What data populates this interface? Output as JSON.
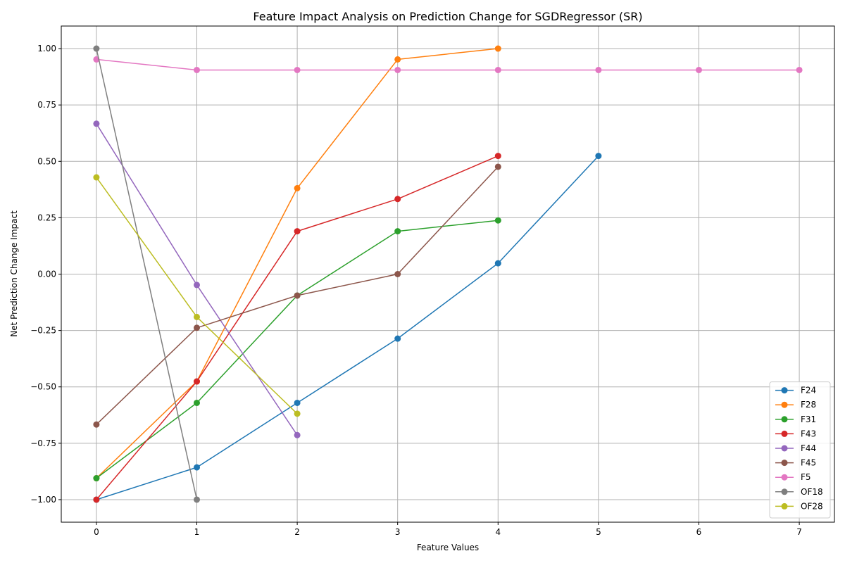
{
  "chart_data": {
    "type": "line",
    "title": "Feature Impact Analysis on Prediction Change for SGDRegressor (SR)",
    "xlabel": "Feature Values",
    "ylabel": "Net Prediction Change Impact",
    "xlim": [
      -0.35,
      7.35
    ],
    "ylim": [
      -1.1,
      1.1
    ],
    "xticks": [
      0,
      1,
      2,
      3,
      4,
      5,
      6,
      7
    ],
    "xtick_labels": [
      "0",
      "1",
      "2",
      "3",
      "4",
      "5",
      "6",
      "7"
    ],
    "yticks": [
      -1.0,
      -0.75,
      -0.5,
      -0.25,
      0.0,
      0.25,
      0.5,
      0.75,
      1.0
    ],
    "ytick_labels": [
      "−1.00",
      "−0.75",
      "−0.50",
      "−0.25",
      "0.00",
      "0.25",
      "0.50",
      "0.75",
      "1.00"
    ],
    "grid": true,
    "legend_position": "bottom-right",
    "series": [
      {
        "name": "F24",
        "color": "#1f77b4",
        "x": [
          0,
          1,
          2,
          3,
          4,
          5
        ],
        "y": [
          -1.0,
          -0.857,
          -0.571,
          -0.286,
          0.048,
          0.524
        ]
      },
      {
        "name": "F28",
        "color": "#ff7f0e",
        "x": [
          0,
          1,
          2,
          3,
          4
        ],
        "y": [
          -0.905,
          -0.476,
          0.381,
          0.952,
          1.0
        ]
      },
      {
        "name": "F31",
        "color": "#2ca02c",
        "x": [
          0,
          1,
          2,
          3,
          4
        ],
        "y": [
          -0.905,
          -0.571,
          -0.095,
          0.19,
          0.238
        ]
      },
      {
        "name": "F43",
        "color": "#d62728",
        "x": [
          0,
          1,
          2,
          3,
          4
        ],
        "y": [
          -1.0,
          -0.476,
          0.19,
          0.333,
          0.524
        ]
      },
      {
        "name": "F44",
        "color": "#9467bd",
        "x": [
          0,
          1,
          2
        ],
        "y": [
          0.667,
          -0.048,
          -0.714
        ]
      },
      {
        "name": "F45",
        "color": "#8c564b",
        "x": [
          0,
          1,
          2,
          3,
          4
        ],
        "y": [
          -0.667,
          -0.238,
          -0.095,
          0.0,
          0.476
        ]
      },
      {
        "name": "F5",
        "color": "#e377c2",
        "x": [
          0,
          1,
          2,
          3,
          4,
          5,
          6,
          7
        ],
        "y": [
          0.952,
          0.905,
          0.905,
          0.905,
          0.905,
          0.905,
          0.905,
          0.905
        ]
      },
      {
        "name": "OF18",
        "color": "#7f7f7f",
        "x": [
          0,
          1
        ],
        "y": [
          1.0,
          -1.0
        ]
      },
      {
        "name": "OF28",
        "color": "#bcbd22",
        "x": [
          0,
          1,
          2
        ],
        "y": [
          0.429,
          -0.19,
          -0.619
        ]
      }
    ]
  }
}
